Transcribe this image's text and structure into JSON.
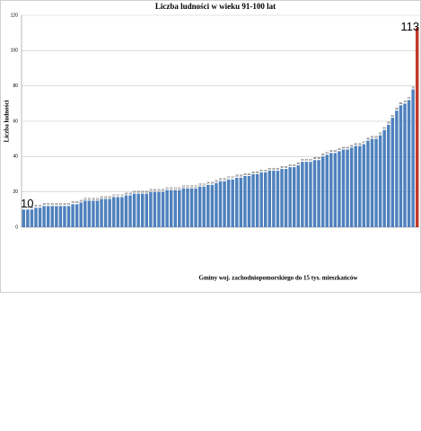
{
  "chart_data": {
    "type": "bar",
    "title": "Liczba ludności w wieku 91-100 lat",
    "y_label": "Liczba ludności",
    "x_label": "Gminy woj. zachodniopomorskiego do 15 tys. mieszkańców",
    "categories": [
      null,
      null,
      null,
      null,
      null,
      null,
      null,
      null,
      null,
      null,
      null,
      null,
      null,
      null,
      null,
      null,
      null,
      null,
      null,
      null,
      null,
      null,
      null,
      null,
      null,
      null,
      null,
      null,
      null,
      null,
      null,
      null,
      null,
      null,
      null,
      null,
      null,
      null,
      null,
      null,
      null,
      null,
      null,
      null,
      null,
      null,
      null,
      null,
      null,
      null,
      null,
      null,
      null,
      null,
      null,
      null,
      null,
      null,
      null,
      null,
      null,
      null,
      null,
      null,
      null,
      null,
      null,
      null,
      null,
      null,
      null,
      null,
      null,
      null,
      null,
      null,
      null,
      null,
      null,
      null,
      null,
      null,
      null,
      null,
      null,
      null,
      null,
      null,
      null,
      null,
      null,
      null,
      null,
      null,
      null,
      null,
      null
    ],
    "values": [
      10,
      10,
      10,
      11,
      11,
      12,
      12,
      12,
      12,
      12,
      12,
      12,
      13,
      13,
      14,
      15,
      15,
      15,
      15,
      16,
      16,
      16,
      17,
      17,
      17,
      18,
      18,
      19,
      19,
      19,
      19,
      20,
      20,
      20,
      20,
      21,
      21,
      21,
      21,
      22,
      22,
      22,
      22,
      23,
      23,
      24,
      24,
      25,
      26,
      26,
      27,
      27,
      28,
      28,
      29,
      29,
      30,
      30,
      31,
      31,
      32,
      32,
      32,
      33,
      33,
      34,
      34,
      35,
      37,
      37,
      37,
      38,
      38,
      40,
      41,
      42,
      42,
      43,
      44,
      44,
      45,
      46,
      46,
      47,
      49,
      50,
      50,
      52,
      55,
      58,
      62,
      66,
      69,
      70,
      72,
      78,
      113
    ],
    "colors": [
      "#4f81bd",
      "#4f81bd",
      "#4f81bd",
      "#4f81bd",
      "#4f81bd",
      "#4f81bd",
      "#4f81bd",
      "#4f81bd",
      "#4f81bd",
      "#4f81bd",
      "#4f81bd",
      "#4f81bd",
      "#4f81bd",
      "#4f81bd",
      "#4f81bd",
      "#4f81bd",
      "#4f81bd",
      "#4f81bd",
      "#4f81bd",
      "#4f81bd",
      "#4f81bd",
      "#4f81bd",
      "#4f81bd",
      "#4f81bd",
      "#4f81bd",
      "#4f81bd",
      "#4f81bd",
      "#4f81bd",
      "#4f81bd",
      "#4f81bd",
      "#4f81bd",
      "#4f81bd",
      "#4f81bd",
      "#4f81bd",
      "#4f81bd",
      "#4f81bd",
      "#4f81bd",
      "#4f81bd",
      "#4f81bd",
      "#4f81bd",
      "#4f81bd",
      "#4f81bd",
      "#4f81bd",
      "#4f81bd",
      "#4f81bd",
      "#4f81bd",
      "#4f81bd",
      "#4f81bd",
      "#4f81bd",
      "#4f81bd",
      "#4f81bd",
      "#4f81bd",
      "#4f81bd",
      "#4f81bd",
      "#4f81bd",
      "#4f81bd",
      "#4f81bd",
      "#4f81bd",
      "#4f81bd",
      "#4f81bd",
      "#4f81bd",
      "#4f81bd",
      "#4f81bd",
      "#4f81bd",
      "#4f81bd",
      "#4f81bd",
      "#4f81bd",
      "#4f81bd",
      "#4f81bd",
      "#4f81bd",
      "#4f81bd",
      "#4f81bd",
      "#4f81bd",
      "#4f81bd",
      "#4f81bd",
      "#4f81bd",
      "#4f81bd",
      "#4f81bd",
      "#4f81bd",
      "#4f81bd",
      "#4f81bd",
      "#4f81bd",
      "#4f81bd",
      "#4f81bd",
      "#4f81bd",
      "#4f81bd",
      "#4f81bd",
      "#4f81bd",
      "#4f81bd",
      "#4f81bd",
      "#4f81bd",
      "#4f81bd",
      "#4f81bd",
      "#4f81bd",
      "#4f81bd",
      "#4f81bd",
      "#c0392b"
    ],
    "ylim": [
      0,
      120
    ],
    "yticks": [
      0,
      20,
      40,
      60,
      80,
      100,
      120
    ],
    "grid": true
  }
}
